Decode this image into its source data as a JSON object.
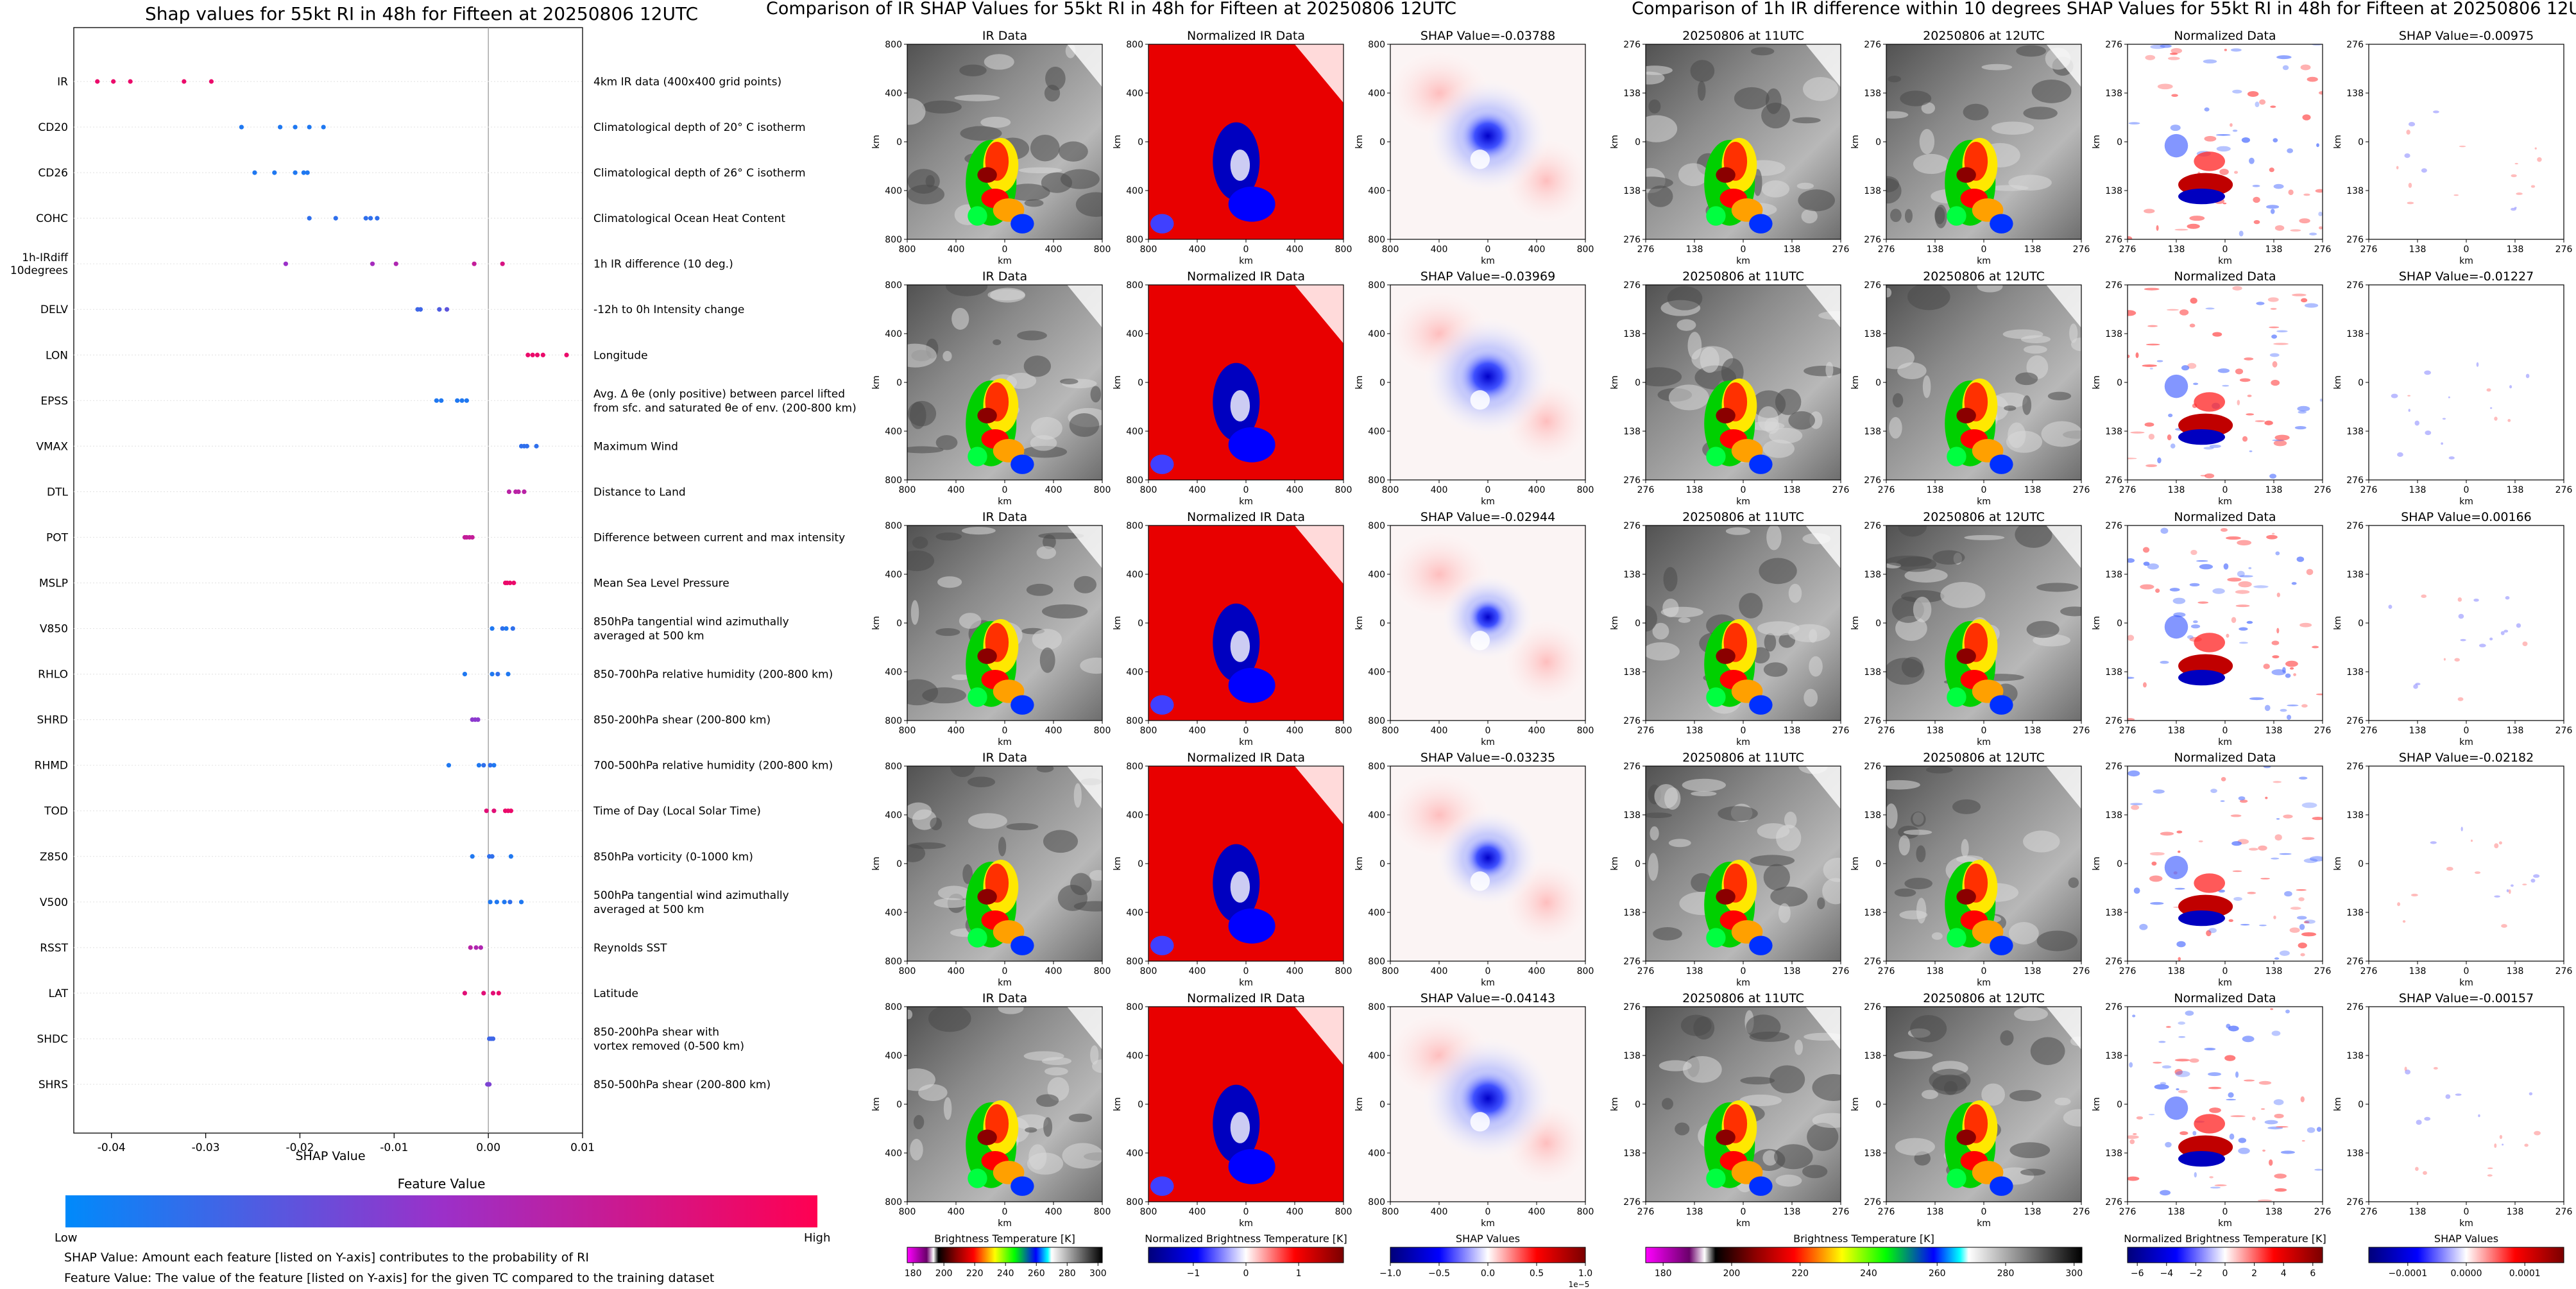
{
  "chart_data": [
    {
      "type": "scatter",
      "title": "Shap values for 55kt RI in 48h for Fifteen at 20250806 12UTC",
      "xlabel": "SHAP Value",
      "xlim": [
        -0.044,
        0.01
      ],
      "xticks": [
        -0.04,
        -0.03,
        -0.02,
        -0.01,
        0.0,
        0.01
      ],
      "xtick_labels": [
        "-0.04",
        "-0.03",
        "-0.02",
        "-0.01",
        "0.00",
        "0.01"
      ],
      "colorbar": {
        "title": "Feature Value",
        "low_label": "Low",
        "high_label": "High",
        "low_color": "#008afb",
        "mid_color": "#9b30c9",
        "high_color": "#ff0052"
      },
      "footnotes": [
        "SHAP Value: Amount each feature [listed on Y-axis] contributes to the probability of RI",
        "Feature Value: The value of the feature [listed on Y-axis] for the given TC compared to the training dataset"
      ],
      "features": [
        {
          "name": "IR",
          "desc": [
            "4km IR data (400x400 grid points)"
          ],
          "points": [
            [
              -0.0415,
              0.9
            ],
            [
              -0.0398,
              0.9
            ],
            [
              -0.038,
              0.9
            ],
            [
              -0.0323,
              0.9
            ],
            [
              -0.0294,
              0.9
            ]
          ]
        },
        {
          "name": "CD20",
          "desc": [
            "Climatological depth of 20° C isotherm"
          ],
          "points": [
            [
              -0.0262,
              0.1
            ],
            [
              -0.0221,
              0.1
            ],
            [
              -0.0205,
              0.1
            ],
            [
              -0.019,
              0.1
            ],
            [
              -0.0175,
              0.1
            ]
          ]
        },
        {
          "name": "CD26",
          "desc": [
            "Climatological depth of 26° C isotherm"
          ],
          "points": [
            [
              -0.0248,
              0.1
            ],
            [
              -0.0227,
              0.1
            ],
            [
              -0.0205,
              0.1
            ],
            [
              -0.0196,
              0.1
            ],
            [
              -0.0192,
              0.1
            ]
          ]
        },
        {
          "name": "COHC",
          "desc": [
            "Climatological Ocean Heat Content"
          ],
          "points": [
            [
              -0.019,
              0.15
            ],
            [
              -0.0162,
              0.15
            ],
            [
              -0.013,
              0.15
            ],
            [
              -0.0125,
              0.15
            ],
            [
              -0.0118,
              0.15
            ]
          ]
        },
        {
          "name": "1h-IRdiff\n10degrees",
          "desc": [
            "1h IR difference (10 deg.)"
          ],
          "points": [
            [
              -0.0215,
              0.5
            ],
            [
              -0.0123,
              0.55
            ],
            [
              -0.0098,
              0.6
            ],
            [
              -0.0015,
              0.7
            ],
            [
              0.0015,
              0.8
            ]
          ]
        },
        {
          "name": "DELV",
          "desc": [
            "-12h to 0h Intensity change"
          ],
          "points": [
            [
              -0.0075,
              0.2
            ],
            [
              -0.0072,
              0.2
            ],
            [
              -0.0052,
              0.25
            ],
            [
              -0.0044,
              0.3
            ]
          ]
        },
        {
          "name": "LON",
          "desc": [
            "Longitude"
          ],
          "points": [
            [
              0.0042,
              0.9
            ],
            [
              0.0047,
              0.9
            ],
            [
              0.0052,
              0.9
            ],
            [
              0.0058,
              0.9
            ],
            [
              0.0083,
              0.9
            ]
          ]
        },
        {
          "name": "EPSS",
          "desc": [
            "Avg. Δ θe (only positive) between parcel lifted",
            "from sfc. and saturated θe of env. (200-800 km)"
          ],
          "points": [
            [
              -0.0055,
              0.1
            ],
            [
              -0.005,
              0.1
            ],
            [
              -0.0033,
              0.1
            ],
            [
              -0.0028,
              0.1
            ],
            [
              -0.0023,
              0.1
            ]
          ]
        },
        {
          "name": "VMAX",
          "desc": [
            "Maximum Wind"
          ],
          "points": [
            [
              0.0035,
              0.15
            ],
            [
              0.0038,
              0.15
            ],
            [
              0.0041,
              0.15
            ],
            [
              0.0051,
              0.15
            ]
          ]
        },
        {
          "name": "DTL",
          "desc": [
            "Distance to Land"
          ],
          "points": [
            [
              0.0022,
              0.65
            ],
            [
              0.0029,
              0.65
            ],
            [
              0.0032,
              0.65
            ],
            [
              0.0038,
              0.65
            ]
          ]
        },
        {
          "name": "POT",
          "desc": [
            "Difference between current and max intensity"
          ],
          "points": [
            [
              -0.0025,
              0.7
            ],
            [
              -0.0023,
              0.7
            ],
            [
              -0.002,
              0.7
            ],
            [
              -0.0017,
              0.7
            ]
          ]
        },
        {
          "name": "MSLP",
          "desc": [
            "Mean Sea Level Pressure"
          ],
          "points": [
            [
              0.0018,
              0.9
            ],
            [
              0.002,
              0.9
            ],
            [
              0.0023,
              0.9
            ],
            [
              0.0027,
              0.9
            ]
          ]
        },
        {
          "name": "V850",
          "desc": [
            "850hPa tangential wind azimuthally",
            "averaged at 500 km"
          ],
          "points": [
            [
              0.0004,
              0.1
            ],
            [
              0.0015,
              0.15
            ],
            [
              0.0019,
              0.1
            ],
            [
              0.0026,
              0.15
            ]
          ]
        },
        {
          "name": "RHLO",
          "desc": [
            "850-700hPa relative humidity (200-800 km)"
          ],
          "points": [
            [
              -0.0025,
              0.1
            ],
            [
              0.0004,
              0.1
            ],
            [
              0.001,
              0.15
            ],
            [
              0.0021,
              0.1
            ]
          ]
        },
        {
          "name": "SHRD",
          "desc": [
            "850-200hPa shear (200-800 km)"
          ],
          "points": [
            [
              -0.0017,
              0.45
            ],
            [
              -0.0014,
              0.45
            ],
            [
              -0.0011,
              0.45
            ]
          ]
        },
        {
          "name": "RHMD",
          "desc": [
            "700-500hPa relative humidity (200-800 km)"
          ],
          "points": [
            [
              -0.0042,
              0.1
            ],
            [
              -0.001,
              0.1
            ],
            [
              -0.0005,
              0.15
            ],
            [
              0.0002,
              0.15
            ],
            [
              0.0006,
              0.1
            ]
          ]
        },
        {
          "name": "TOD",
          "desc": [
            "Time of Day (Local Solar Time)"
          ],
          "points": [
            [
              -0.0002,
              0.85
            ],
            [
              0.0006,
              0.85
            ],
            [
              0.0018,
              0.9
            ],
            [
              0.0021,
              0.9
            ],
            [
              0.0024,
              0.9
            ]
          ]
        },
        {
          "name": "Z850",
          "desc": [
            "850hPa vorticity (0-1000 km)"
          ],
          "points": [
            [
              -0.0017,
              0.1
            ],
            [
              0.0001,
              0.15
            ],
            [
              0.0004,
              0.15
            ],
            [
              0.0024,
              0.1
            ]
          ]
        },
        {
          "name": "V500",
          "desc": [
            "500hPa tangential wind azimuthally",
            "averaged at 500 km"
          ],
          "points": [
            [
              0.0002,
              0.1
            ],
            [
              0.0009,
              0.1
            ],
            [
              0.0017,
              0.1
            ],
            [
              0.0023,
              0.15
            ],
            [
              0.0035,
              0.1
            ]
          ]
        },
        {
          "name": "RSST",
          "desc": [
            "Reynolds SST"
          ],
          "points": [
            [
              -0.0019,
              0.65
            ],
            [
              -0.0013,
              0.6
            ],
            [
              -0.0008,
              0.6
            ]
          ]
        },
        {
          "name": "LAT",
          "desc": [
            "Latitude"
          ],
          "points": [
            [
              -0.0025,
              0.85
            ],
            [
              -0.0005,
              0.85
            ],
            [
              0.0005,
              0.85
            ],
            [
              0.0011,
              0.9
            ]
          ]
        },
        {
          "name": "SHDC",
          "desc": [
            "850-200hPa shear with",
            "vortex removed (0-500 km)"
          ],
          "points": [
            [
              0.0001,
              0.2
            ],
            [
              0.0003,
              0.2
            ],
            [
              0.0005,
              0.2
            ]
          ]
        },
        {
          "name": "SHRS",
          "desc": [
            "850-500hPa shear (200-800 km)"
          ],
          "points": [
            [
              -0.0001,
              0.4
            ],
            [
              0.0,
              0.4
            ],
            [
              0.0001,
              0.4
            ]
          ]
        }
      ]
    },
    {
      "type": "heatmap",
      "title": "Comparison of IR SHAP Values for 55kt RI in 48h for Fifteen at 20250806 12UTC",
      "columns": [
        "IR Data",
        "Normalized IR Data",
        "SHAP Values"
      ],
      "xlabel": "km",
      "ylabel": "km",
      "tick_labels": [
        "800",
        "400",
        "0",
        "400",
        "800"
      ],
      "row_titles": [
        [
          "IR Data",
          "Normalized IR Data",
          "SHAP Value=-0.03788"
        ],
        [
          "IR Data",
          "Normalized IR Data",
          "SHAP Value=-0.03969"
        ],
        [
          "IR Data",
          "Normalized IR Data",
          "SHAP Value=-0.02944"
        ],
        [
          "IR Data",
          "Normalized IR Data",
          "SHAP Value=-0.03235"
        ],
        [
          "IR Data",
          "Normalized IR Data",
          "SHAP Value=-0.04143"
        ]
      ],
      "colorbars": [
        {
          "label": "Brightness Temperature [K]",
          "ticks": [
            "180",
            "200",
            "220",
            "240",
            "260",
            "280",
            "300"
          ]
        },
        {
          "label": "Normalized Brightness Temperature [K]",
          "ticks": [
            "−1",
            "0",
            "1"
          ]
        },
        {
          "label": "SHAP Values",
          "ticks": [
            "−1.0",
            "−0.5",
            "0.0",
            "0.5",
            "1.0"
          ],
          "multiplier": "1e−5"
        }
      ]
    },
    {
      "type": "heatmap",
      "title": "Comparison of 1h IR difference within 10 degrees SHAP Values for 55kt RI in 48h for Fifteen at 20250806 12UTC",
      "xlabel": "km",
      "ylabel": "km",
      "tick_labels": [
        "276",
        "138",
        "0",
        "138",
        "276"
      ],
      "row_titles": [
        [
          "20250806 at 11UTC",
          "20250806 at 12UTC",
          "Normalized Data",
          "SHAP Value=-0.00975"
        ],
        [
          "20250806 at 11UTC",
          "20250806 at 12UTC",
          "Normalized Data",
          "SHAP Value=-0.01227"
        ],
        [
          "20250806 at 11UTC",
          "20250806 at 12UTC",
          "Normalized Data",
          "SHAP Value=0.00166"
        ],
        [
          "20250806 at 11UTC",
          "20250806 at 12UTC",
          "Normalized Data",
          "SHAP Value=-0.02182"
        ],
        [
          "20250806 at 11UTC",
          "20250806 at 12UTC",
          "Normalized Data",
          "SHAP Value=-0.00157"
        ]
      ],
      "colorbars": [
        {
          "label": "Brightness Temperature [K]",
          "ticks": [
            "180",
            "200",
            "220",
            "240",
            "260",
            "280",
            "300"
          ]
        },
        {
          "label": "Normalized Brightness Temperature [K]",
          "ticks": [
            "−6",
            "−4",
            "−2",
            "0",
            "2",
            "4",
            "6"
          ]
        },
        {
          "label": "SHAP Values",
          "ticks": [
            "−0.0001",
            "0.0000",
            "0.0001"
          ]
        }
      ]
    }
  ]
}
